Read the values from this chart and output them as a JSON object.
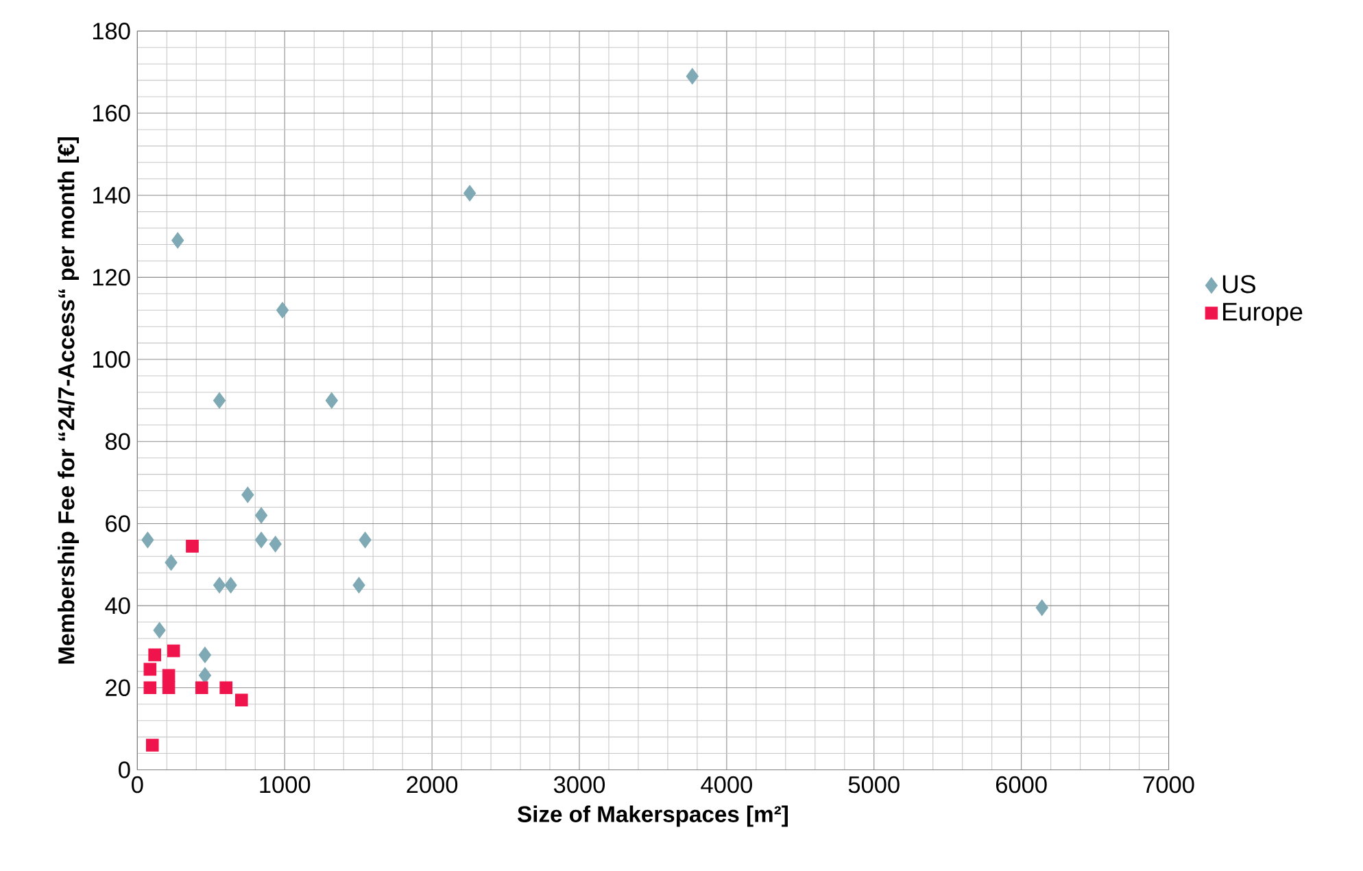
{
  "chart_data": {
    "type": "scatter",
    "xlabel": "Size of Makerspaces [m²]",
    "ylabel": "Membership Fee for “24/7-Access“ per month [€]",
    "xlim": [
      0,
      7000
    ],
    "ylim": [
      0,
      180
    ],
    "xticks": [
      0,
      1000,
      2000,
      3000,
      4000,
      5000,
      6000,
      7000
    ],
    "yticks": [
      0,
      20,
      40,
      60,
      80,
      100,
      120,
      140,
      160,
      180
    ],
    "grid": true,
    "legend": "right",
    "series": [
      {
        "name": "US",
        "color": "#7fa9b4",
        "marker": "diamond",
        "x": [
          70,
          229,
          274,
          150,
          459,
          459,
          557,
          634,
          749,
          841,
          841,
          937,
          985,
          1319,
          557,
          1504,
          1546,
          2256,
          3767,
          6140
        ],
        "values": [
          56,
          50.5,
          129,
          34,
          28,
          23,
          90,
          45,
          67,
          62,
          56,
          55,
          112,
          90,
          45,
          45,
          56,
          140.5,
          169,
          39.5
        ]
      },
      {
        "name": "Europe",
        "color": "#f0144c",
        "marker": "square",
        "x": [
          102,
          373,
          118,
          246,
          86,
          213,
          86,
          213,
          437,
          602,
          707
        ],
        "values": [
          6,
          54.5,
          28,
          29,
          24.5,
          23,
          20,
          20,
          20,
          20,
          17
        ]
      }
    ]
  }
}
